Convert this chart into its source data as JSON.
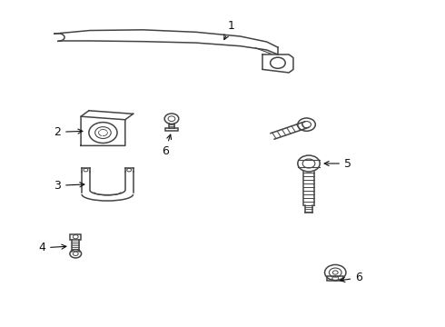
{
  "bg_color": "#ffffff",
  "line_color": "#444444",
  "label_color": "#111111",
  "font_size": 9,
  "lw": 1.1
}
